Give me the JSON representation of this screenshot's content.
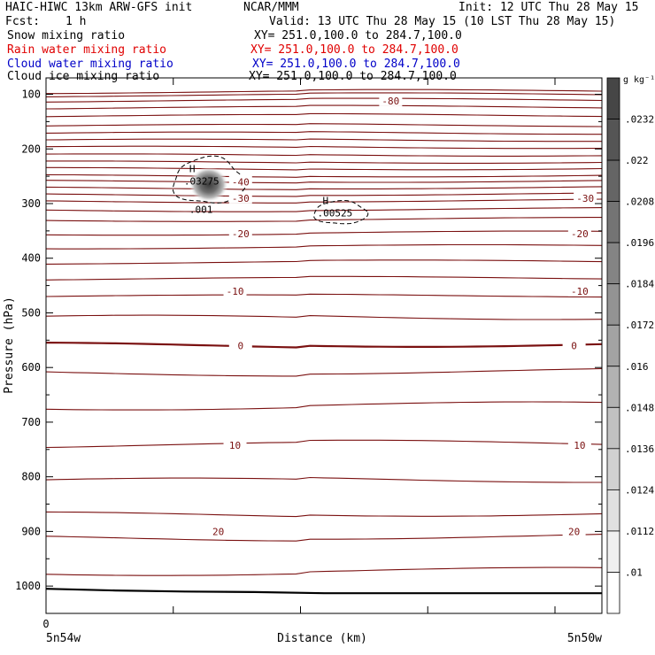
{
  "header": {
    "title": "HAIC-HIWC 13km ARW-GFS init",
    "org": "NCAR/MMM",
    "init": "Init: 12 UTC Thu 28 May 15",
    "fcst_label": "Fcst:",
    "fcst_value": "1 h",
    "valid": "Valid: 13 UTC Thu 28 May 15 (10 LST Thu 28 May 15)"
  },
  "fields": [
    {
      "name": "Snow mixing ratio",
      "xy": "XY= 251.0,100.0 to 284.7,100.0",
      "color": "#000000"
    },
    {
      "name": "Rain water mixing ratio",
      "xy": "XY= 251.0,100.0 to 284.7,100.0",
      "color": "#e00000"
    },
    {
      "name": "Cloud water mixing ratio",
      "xy": "XY= 251.0,100.0 to 284.7,100.0",
      "color": "#0000c8"
    },
    {
      "name": "Cloud ice mixing ratio",
      "xy": "XY= 251.0,100.0 to 284.7,100.0",
      "color": "#000000"
    }
  ],
  "chart_data": {
    "type": "contour",
    "xlabel": "Distance (km)",
    "ylabel": "Pressure (hPa)",
    "x_tick_labels": [
      "0"
    ],
    "x_end_labels": [
      "5n54w",
      "5n50w"
    ],
    "y_ticks": [
      100,
      200,
      300,
      400,
      500,
      600,
      700,
      800,
      900,
      1000
    ],
    "ylim": [
      1050,
      70
    ],
    "isotherms": [
      {
        "level": -80,
        "p": 112,
        "labels": [
          0.62
        ]
      },
      {
        "level": -40,
        "p": 260,
        "labels": [
          0.35
        ]
      },
      {
        "level": -30,
        "p": 290,
        "labels": [
          0.35,
          0.97
        ]
      },
      {
        "level": -20,
        "p": 355,
        "labels": [
          0.35,
          0.96
        ]
      },
      {
        "level": -10,
        "p": 460,
        "labels": [
          0.34,
          0.96
        ]
      },
      {
        "level": 0,
        "p": 560,
        "labels": [
          0.35,
          0.95
        ]
      },
      {
        "level": 10,
        "p": 742,
        "labels": [
          0.34,
          0.96
        ]
      },
      {
        "level": 20,
        "p": 900,
        "labels": [
          0.31,
          0.95
        ]
      }
    ],
    "isotherm_pressures": [
      96,
      102,
      112,
      125,
      140,
      158,
      172,
      185,
      198,
      212,
      225,
      237,
      250,
      260,
      272,
      284,
      296,
      312,
      330,
      355,
      380,
      408,
      438,
      470,
      510,
      560,
      610,
      672,
      742,
      808,
      870,
      912,
      975
    ],
    "thick_isotherms": [
      560
    ],
    "surface_pressure": [
      1005,
      1008,
      1010,
      1011,
      1013,
      1013,
      1013,
      1013,
      1013
    ],
    "highs": [
      {
        "label": "H",
        "value": ".03275",
        "x": 0.28,
        "p": 262,
        "shaded_peak": 0.0232
      },
      {
        "label": "H",
        "value": ".00525",
        "x": 0.52,
        "p": 320
      }
    ],
    "contour_labels": [
      ".001"
    ],
    "colorbar": {
      "units": "g kg⁻¹",
      "ticks": [
        0.0232,
        0.022,
        0.0208,
        0.0196,
        0.0184,
        0.0172,
        0.016,
        0.0148,
        0.0136,
        0.0124,
        0.0112,
        0.01
      ],
      "tick_labels": [
        ".0232",
        ".022",
        ".0208",
        ".0196",
        ".0184",
        ".0172",
        ".016",
        ".0148",
        ".0136",
        ".0124",
        ".0112",
        ".01"
      ]
    }
  }
}
